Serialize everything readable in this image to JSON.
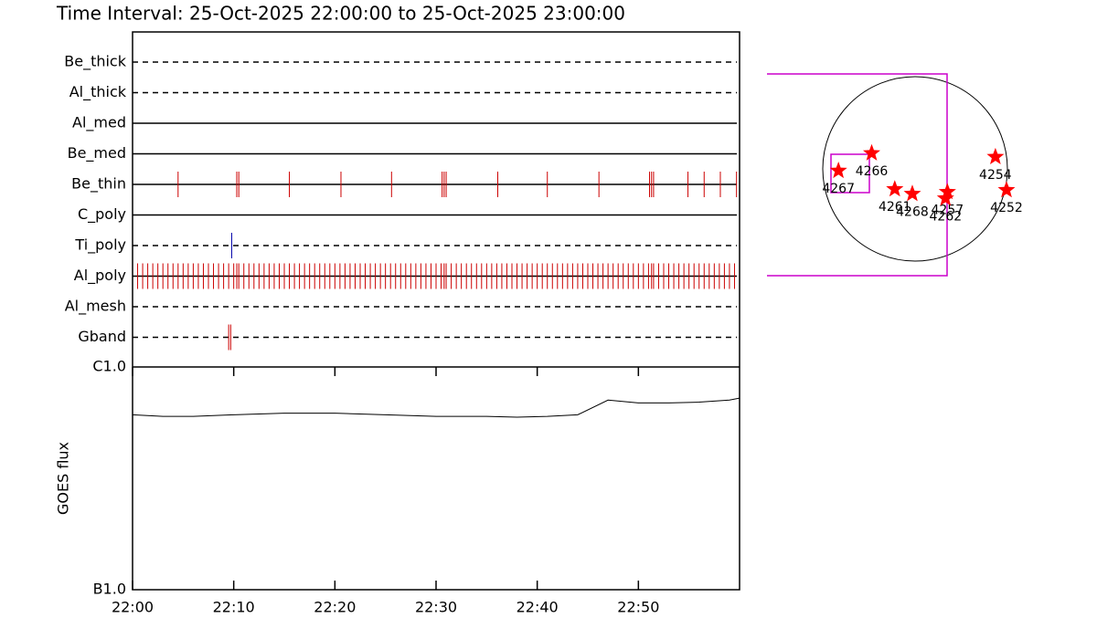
{
  "chart_data": [
    {
      "type": "timeline",
      "title": "Time Interval: 25-Oct-2025 22:00:00 to 25-Oct-2025 23:00:00",
      "xlim": [
        0,
        60
      ],
      "rows": [
        {
          "name": "Be_thick",
          "line": "dashed",
          "events": []
        },
        {
          "name": "Al_thick",
          "line": "dashed",
          "events": []
        },
        {
          "name": "Al_med",
          "line": "solid",
          "events": []
        },
        {
          "name": "Be_med",
          "line": "solid",
          "events": []
        },
        {
          "name": "Be_thin",
          "line": "solid",
          "color": "#cc0000",
          "events": [
            4.5,
            10.3,
            10.5,
            15.5,
            20.6,
            25.6,
            30.6,
            30.8,
            31.0,
            36.1,
            41.0,
            46.1,
            51.1,
            51.3,
            51.5,
            54.9,
            56.5,
            58.1,
            59.7
          ]
        },
        {
          "name": "C_poly",
          "line": "solid",
          "events": []
        },
        {
          "name": "Ti_poly",
          "line": "dashed",
          "color": "#0000aa",
          "events": [
            9.8
          ]
        },
        {
          "name": "Al_poly",
          "line": "solid",
          "color": "#cc0000",
          "events": [
            0.5,
            1.0,
            1.5,
            2.0,
            2.5,
            3.0,
            3.5,
            4.0,
            4.5,
            5.0,
            5.5,
            6.0,
            6.5,
            7.0,
            7.5,
            8.0,
            8.5,
            9.0,
            9.5,
            10.0,
            10.3,
            10.5,
            11.0,
            11.5,
            12.0,
            12.5,
            13.0,
            13.5,
            14.0,
            14.5,
            15.0,
            15.5,
            16.0,
            16.5,
            17.0,
            17.5,
            18.0,
            18.5,
            19.0,
            19.5,
            20.0,
            20.5,
            21.0,
            21.5,
            22.0,
            22.5,
            23.0,
            23.5,
            24.0,
            24.5,
            25.0,
            25.5,
            26.0,
            26.5,
            27.0,
            27.5,
            28.0,
            28.5,
            29.0,
            29.5,
            30.0,
            30.5,
            30.8,
            31.0,
            31.5,
            32.0,
            32.5,
            33.0,
            33.5,
            34.0,
            34.5,
            35.0,
            35.5,
            36.0,
            36.5,
            37.0,
            37.5,
            38.0,
            38.5,
            39.0,
            39.5,
            40.0,
            40.5,
            41.0,
            41.5,
            42.0,
            42.5,
            43.0,
            43.5,
            44.0,
            44.5,
            45.0,
            45.5,
            46.0,
            46.5,
            47.0,
            47.5,
            48.0,
            48.5,
            49.0,
            49.5,
            50.0,
            50.5,
            51.0,
            51.3,
            51.5,
            52.0,
            52.5,
            53.0,
            53.5,
            54.0,
            54.5,
            55.0,
            55.5,
            56.0,
            56.5,
            57.0,
            57.5,
            58.0,
            58.5,
            59.0,
            59.5
          ]
        },
        {
          "name": "Al_mesh",
          "line": "dashed",
          "events": []
        },
        {
          "name": "Gband",
          "line": "dashed",
          "color": "#cc0000",
          "events": [
            9.5,
            9.7
          ]
        }
      ]
    },
    {
      "type": "line",
      "y_label": "GOES flux",
      "log_scale": true,
      "color": "#000000",
      "x": [
        0,
        3,
        6,
        10,
        15,
        20,
        25,
        30,
        35,
        38,
        41,
        44,
        47,
        50,
        53,
        56,
        59,
        60
      ],
      "values": [
        6.1e-07,
        6e-07,
        6e-07,
        6.1e-07,
        6.2e-07,
        6.2e-07,
        6.1e-07,
        6e-07,
        6e-07,
        5.95e-07,
        6e-07,
        6.1e-07,
        7.1e-07,
        6.9e-07,
        6.9e-07,
        6.95e-07,
        7.1e-07,
        7.25e-07
      ],
      "xlim": [
        0,
        60
      ],
      "xticks": [
        {
          "value": 0,
          "label": "22:00"
        },
        {
          "value": 10,
          "label": "22:10"
        },
        {
          "value": 20,
          "label": "22:20"
        },
        {
          "value": 30,
          "label": "22:30"
        },
        {
          "value": 40,
          "label": "22:40"
        },
        {
          "value": 50,
          "label": "22:50"
        }
      ],
      "ylim": [
        1e-07,
        1e-06
      ],
      "yticks": [
        {
          "value": 1e-07,
          "label": "B1.0"
        },
        {
          "value": 1e-06,
          "label": "C1.0"
        }
      ]
    },
    {
      "type": "scatter",
      "color": "#ff0000",
      "labels": [
        "4267",
        "4266",
        "4261",
        "4268",
        "4257",
        "4262",
        "4254",
        "4252"
      ],
      "x": [
        -0.83,
        -0.47,
        -0.22,
        -0.03,
        0.35,
        0.33,
        0.87,
        0.99
      ],
      "y": [
        -0.02,
        0.17,
        -0.22,
        -0.27,
        -0.25,
        -0.32,
        0.13,
        -0.23
      ],
      "xlim": [
        -1,
        1
      ],
      "ylim": [
        -1,
        1
      ]
    }
  ]
}
